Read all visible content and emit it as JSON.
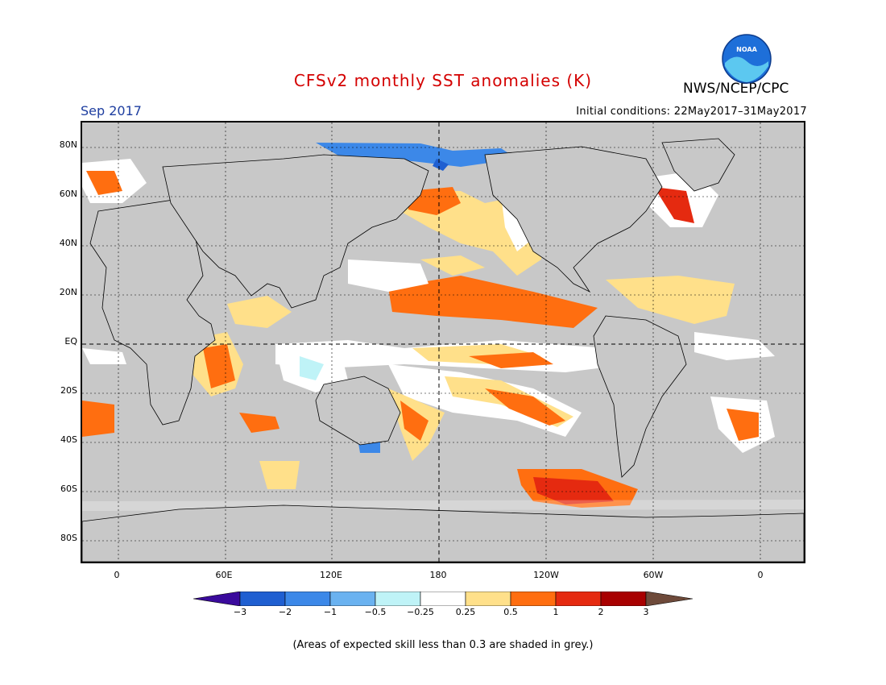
{
  "title": "CFSv2 monthly SST anomalies (K)",
  "target_month": "Sep 2017",
  "initial_conditions": "Initial conditions: 22May2017–31May2017",
  "agency": "NWS/NCEP/CPC",
  "logo_text": "NOAA",
  "footnote": "(Areas of expected skill less than 0.3 are shaded in grey.)",
  "lat_labels": [
    "80N",
    "60N",
    "40N",
    "20N",
    "EQ",
    "20S",
    "40S",
    "60S",
    "80S"
  ],
  "lon_labels": [
    "0",
    "60E",
    "120E",
    "180",
    "120W",
    "60W",
    "0"
  ],
  "colorbar": {
    "ticks": [
      "−3",
      "−2",
      "−1",
      "−0.5",
      "−0.25",
      "0.25",
      "0.5",
      "1",
      "2",
      "3"
    ],
    "colors": [
      "#3a0a9c",
      "#1f5fd1",
      "#3c88e8",
      "#6ab2f0",
      "#bff3f7",
      "#ffffff",
      "#ffe08a",
      "#ff6e10",
      "#e52a10",
      "#a80000",
      "#6e4a3a"
    ]
  },
  "colors": {
    "land": "#ffffff",
    "low_skill": "#c8c8c8",
    "title": "#d40000",
    "month": "#1e3ea0"
  }
}
